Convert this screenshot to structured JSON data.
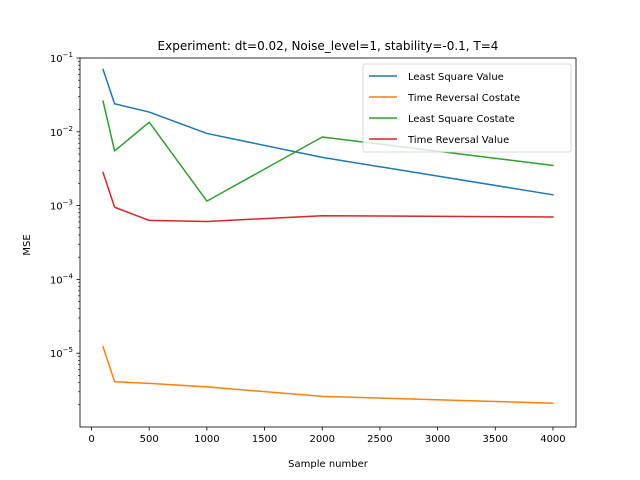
{
  "chart_data": {
    "type": "line",
    "title": "Experiment: dt=0.02, Noise_level=1, stability=-0.1, T=4",
    "xlabel": "Sample number",
    "ylabel": "MSE",
    "yscale": "log",
    "xlim": [
      -100,
      4200
    ],
    "ylim": [
      1e-06,
      0.1
    ],
    "xticks": [
      0,
      500,
      1000,
      1500,
      2000,
      2500,
      3000,
      3500,
      4000
    ],
    "xtick_labels": [
      "0",
      "500",
      "1000",
      "1500",
      "2000",
      "2500",
      "3000",
      "3500",
      "4000"
    ],
    "yticks": [
      1e-05,
      0.0001,
      0.001,
      0.01,
      0.1
    ],
    "ytick_labels": [
      {
        "base": "10",
        "exp": "−5"
      },
      {
        "base": "10",
        "exp": "−4"
      },
      {
        "base": "10",
        "exp": "−3"
      },
      {
        "base": "10",
        "exp": "−2"
      },
      {
        "base": "10",
        "exp": "−1"
      }
    ],
    "grid": false,
    "legend_position": "upper-right",
    "x": [
      100,
      200,
      500,
      1000,
      2000,
      4000
    ],
    "series": [
      {
        "name": "Least Square Value",
        "color": "#1f77b4",
        "values": [
          0.07,
          0.024,
          0.0185,
          0.0095,
          0.0045,
          0.0014
        ]
      },
      {
        "name": "Time Reversal Costate",
        "color": "#ff7f0e",
        "values": [
          1.22e-05,
          4.1e-06,
          3.9e-06,
          3.5e-06,
          2.6e-06,
          2.1e-06
        ]
      },
      {
        "name": "Least Square Costate",
        "color": "#2ca02c",
        "values": [
          0.026,
          0.0055,
          0.0135,
          0.00115,
          0.0085,
          0.0035
        ]
      },
      {
        "name": "Time Reversal Value",
        "color": "#d62728",
        "values": [
          0.0028,
          0.00095,
          0.00063,
          0.00061,
          0.00073,
          0.0007
        ]
      }
    ]
  }
}
